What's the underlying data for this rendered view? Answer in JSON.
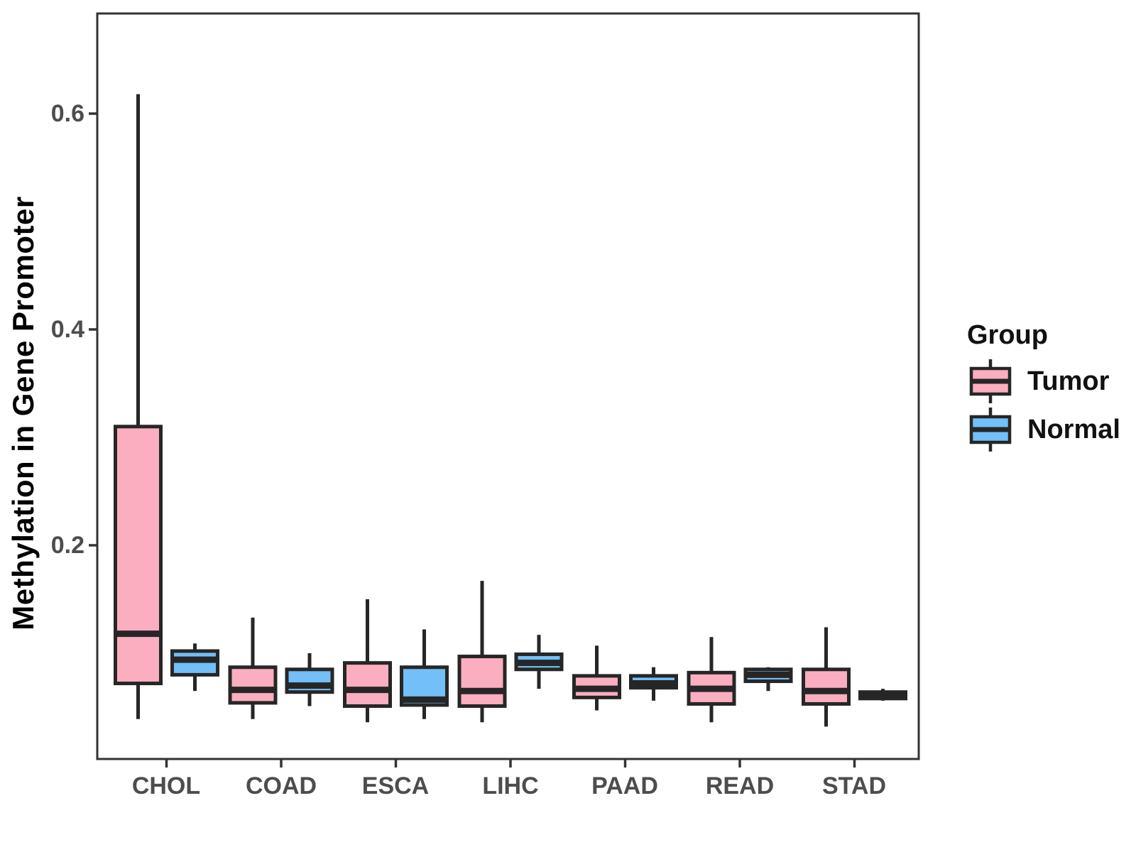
{
  "chart_data": {
    "type": "boxplot",
    "title": "",
    "xlabel": "",
    "ylabel": "Methylation in Gene Promoter",
    "categories": [
      "CHOL",
      "COAD",
      "ESCA",
      "LIHC",
      "PAAD",
      "READ",
      "STAD"
    ],
    "y_ticks": [
      {
        "label": "0.6",
        "value": 0.6
      },
      {
        "label": "0.4",
        "value": 0.4
      },
      {
        "label": "0.2",
        "value": 0.2
      }
    ],
    "ylim": [
      0.0,
      0.692
    ],
    "grid": false,
    "legend_position": "right",
    "legend": {
      "title": "Group",
      "entries": [
        {
          "label": "Tumor",
          "color": "#FBAEC0"
        },
        {
          "label": "Normal",
          "color": "#73BFF7"
        }
      ]
    },
    "series": [
      {
        "name": "Tumor",
        "color": "#FBAEC0",
        "boxes": [
          {
            "category": "CHOL",
            "min": 0.039,
            "q1": 0.072,
            "median": 0.118,
            "q3": 0.31,
            "max": 0.618
          },
          {
            "category": "COAD",
            "min": 0.039,
            "q1": 0.054,
            "median": 0.066,
            "q3": 0.087,
            "max": 0.133
          },
          {
            "category": "ESCA",
            "min": 0.036,
            "q1": 0.051,
            "median": 0.066,
            "q3": 0.091,
            "max": 0.15
          },
          {
            "category": "LIHC",
            "min": 0.036,
            "q1": 0.051,
            "median": 0.065,
            "q3": 0.097,
            "max": 0.167
          },
          {
            "category": "PAAD",
            "min": 0.047,
            "q1": 0.059,
            "median": 0.067,
            "q3": 0.079,
            "max": 0.107
          },
          {
            "category": "READ",
            "min": 0.036,
            "q1": 0.053,
            "median": 0.067,
            "q3": 0.082,
            "max": 0.115
          },
          {
            "category": "STAD",
            "min": 0.032,
            "q1": 0.053,
            "median": 0.065,
            "q3": 0.085,
            "max": 0.124
          }
        ]
      },
      {
        "name": "Normal",
        "color": "#73BFF7",
        "boxes": [
          {
            "category": "CHOL",
            "min": 0.065,
            "q1": 0.08,
            "median": 0.094,
            "q3": 0.102,
            "max": 0.109
          },
          {
            "category": "COAD",
            "min": 0.051,
            "q1": 0.064,
            "median": 0.07,
            "q3": 0.085,
            "max": 0.1
          },
          {
            "category": "ESCA",
            "min": 0.039,
            "q1": 0.052,
            "median": 0.057,
            "q3": 0.087,
            "max": 0.122
          },
          {
            "category": "LIHC",
            "min": 0.067,
            "q1": 0.085,
            "median": 0.091,
            "q3": 0.099,
            "max": 0.117
          },
          {
            "category": "PAAD",
            "min": 0.056,
            "q1": 0.068,
            "median": 0.072,
            "q3": 0.079,
            "max": 0.087
          },
          {
            "category": "READ",
            "min": 0.065,
            "q1": 0.074,
            "median": 0.08,
            "q3": 0.085,
            "max": 0.087
          },
          {
            "category": "STAD",
            "min": 0.056,
            "q1": 0.058,
            "median": 0.061,
            "q3": 0.064,
            "max": 0.067
          }
        ]
      }
    ]
  },
  "styles": {
    "box_stroke": "#262626",
    "axis_stroke": "#333333",
    "tick_label_color": "#4D4D4D",
    "title_color": "#000000",
    "background": "#FFFFFF"
  }
}
